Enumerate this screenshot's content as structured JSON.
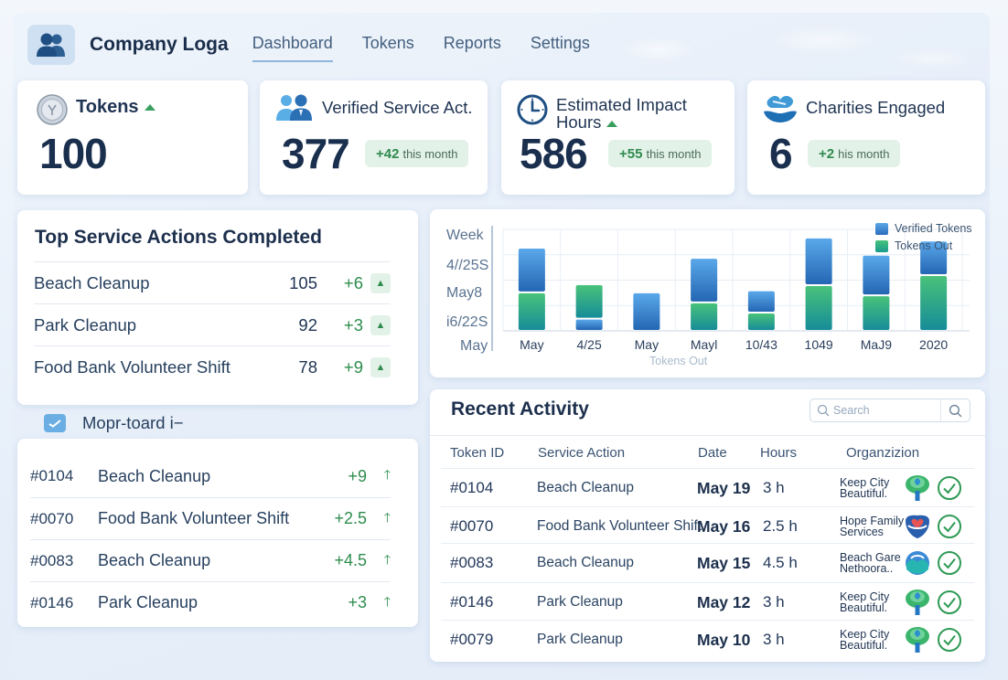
{
  "header": {
    "brand": "Company Loga",
    "logo_icon": "users-icon",
    "nav": [
      {
        "label": "Dashboard",
        "active": true
      },
      {
        "label": "Tokens",
        "active": false
      },
      {
        "label": "Reports",
        "active": false
      },
      {
        "label": "Settings",
        "active": false
      }
    ]
  },
  "stats": [
    {
      "title": "Tokens",
      "icon": "coin-icon",
      "value": "100",
      "trend": "up"
    },
    {
      "title": "Verified Service Act.",
      "icon": "people-icon",
      "value": "377",
      "delta": "+42",
      "delta_suffix": "this month"
    },
    {
      "title_line1": "Estimated Impact",
      "title_line2": "Hours",
      "icon": "clock-icon",
      "value": "586",
      "delta": "+55",
      "delta_suffix": "this month",
      "trend": "up"
    },
    {
      "title": "Charities Engaged",
      "icon": "heart-hand-icon",
      "value": "6",
      "delta": "+2",
      "delta_suffix": "his month"
    }
  ],
  "top_actions": {
    "title": "Top Service Actions Completed",
    "rows": [
      {
        "name": "Beach Cleanup",
        "count": "105",
        "delta": "+6"
      },
      {
        "name": "Park Cleanup",
        "count": "92",
        "delta": "+3"
      },
      {
        "name": "Food Bank Volunteer Shift",
        "count": "78",
        "delta": "+9"
      }
    ]
  },
  "mopr": {
    "label": "Mopr-toard i−",
    "checked": true,
    "rows": [
      {
        "id": "#0104",
        "name": "Beach Cleanup",
        "delta": "+9"
      },
      {
        "id": "#0070",
        "name": "Food Bank Volunteer Shift",
        "delta": "+2.5"
      },
      {
        "id": "#0083",
        "name": "Beach Cleanup",
        "delta": "+4.5"
      },
      {
        "id": "#0146",
        "name": "Park Cleanup",
        "delta": "+3"
      }
    ]
  },
  "chart_data": {
    "type": "bar",
    "stacked": true,
    "title": "",
    "xlabel": "Tokens Out",
    "ylabel": "",
    "y_tick_labels": [
      "Week",
      "4//25S",
      "May8",
      "i6/22S",
      "May"
    ],
    "categories": [
      "May",
      "4/25",
      "May",
      "Mayl",
      "10/43",
      "1049",
      "MaJ9",
      "2020"
    ],
    "ylim": [
      0,
      100
    ],
    "grid": true,
    "legend_position": "top-right",
    "series": [
      {
        "name": "Verified Tokens",
        "color": "#3b8ad6",
        "values": [
          44,
          12,
          38,
          44,
          22,
          47,
          40,
          34
        ]
      },
      {
        "name": "Tokens Out",
        "color": "#2fb27a",
        "values": [
          38,
          34,
          0,
          28,
          18,
          45,
          35,
          55
        ]
      }
    ],
    "stack_order_note": "Tokens Out stacked below Verified Tokens except category 2 (Verified Tokens at bottom)"
  },
  "activity": {
    "title": "Recent Activity",
    "search_placeholder": "Search",
    "columns": [
      "Token ID",
      "Service Action",
      "Date",
      "Hours",
      "Organzizion"
    ],
    "rows": [
      {
        "id": "#0104",
        "action": "Beach Cleanup",
        "date": "May 19",
        "hours": "3 h",
        "org1": "Keep City",
        "org2": "Beautiful.",
        "org_icon": "tree-icon",
        "status": "verified"
      },
      {
        "id": "#0070",
        "action": "Food Bank Volunteer Shift",
        "date": "May 16",
        "hours": "2.5 h",
        "org1": "Hope Family",
        "org2": "Services",
        "org_icon": "heart-shield-icon",
        "status": "verified"
      },
      {
        "id": "#0083",
        "action": "Beach Cleanup",
        "date": "May 15",
        "hours": "4.5 h",
        "org1": "Beach Gare",
        "org2": "Nethoora..",
        "org_icon": "wave-icon",
        "status": "verified"
      },
      {
        "id": "#0146",
        "action": "Park Cleanup",
        "date": "May 12",
        "hours": "3 h",
        "org1": "Keep City",
        "org2": "Beautiful.",
        "org_icon": "tree-icon",
        "status": "verified"
      },
      {
        "id": "#0079",
        "action": "Park Cleanup",
        "date": "May 10",
        "hours": "3 h",
        "org1": "Keep City",
        "org2": "Beautiful.",
        "org_icon": "tree-icon",
        "status": "verified"
      }
    ]
  },
  "colors": {
    "accent_blue": "#3b8ad6",
    "accent_green": "#2fb27a",
    "positive": "#2e8d4e",
    "text_dark": "#1a2f4e"
  }
}
